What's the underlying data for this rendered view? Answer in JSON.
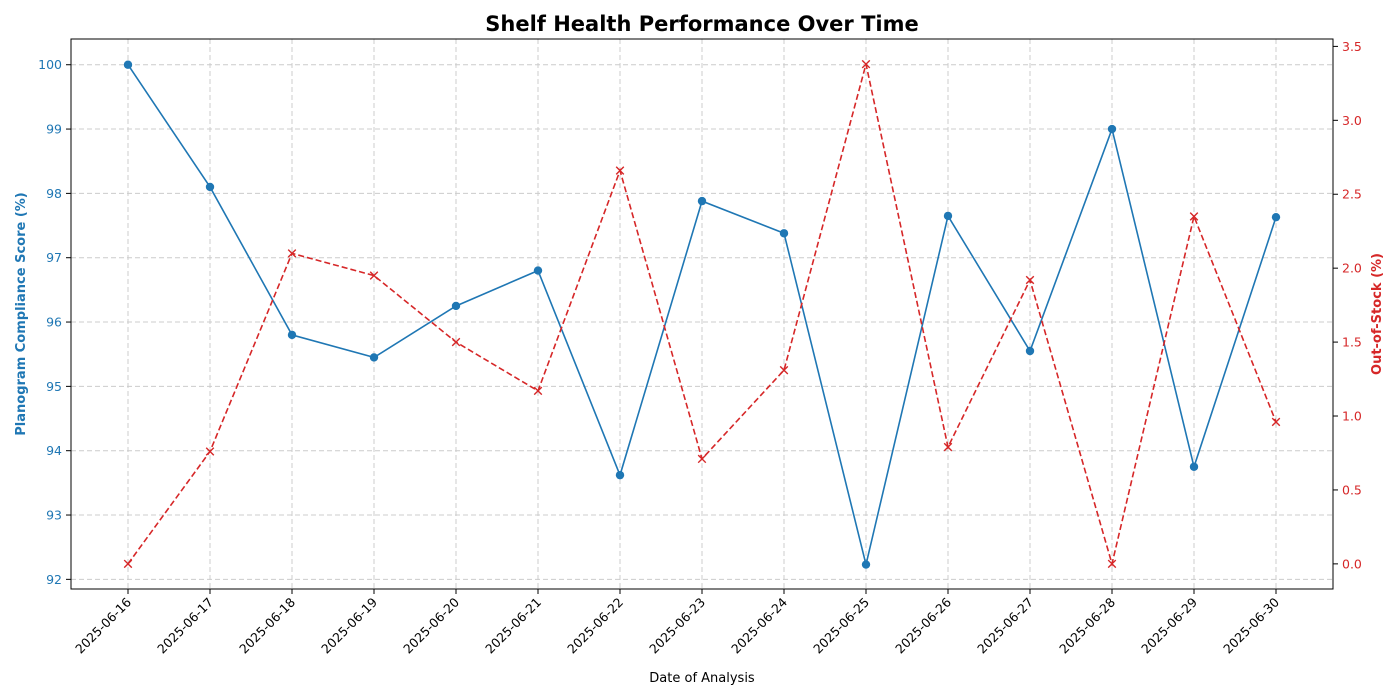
{
  "chart_data": {
    "type": "line",
    "title": "Shelf Health Performance Over Time",
    "xlabel": "Date of Analysis",
    "categories": [
      "2025-06-16",
      "2025-06-17",
      "2025-06-18",
      "2025-06-19",
      "2025-06-20",
      "2025-06-21",
      "2025-06-22",
      "2025-06-23",
      "2025-06-24",
      "2025-06-25",
      "2025-06-26",
      "2025-06-27",
      "2025-06-28",
      "2025-06-29",
      "2025-06-30"
    ],
    "grid": true,
    "left_axis": {
      "label": "Planogram Compliance Score (%)",
      "color": "#1f77b4",
      "ylim": [
        91.85,
        100.4
      ],
      "ticks": [
        "92",
        "93",
        "94",
        "95",
        "96",
        "97",
        "98",
        "99",
        "100"
      ]
    },
    "right_axis": {
      "label": "Out-of-Stock (%)",
      "color": "#d62728",
      "ylim": [
        -0.17,
        3.55
      ],
      "ticks": [
        "0.0",
        "0.5",
        "1.0",
        "1.5",
        "2.0",
        "2.5",
        "3.0",
        "3.5"
      ]
    },
    "series": [
      {
        "axis": "left",
        "color": "#1f77b4",
        "line_style": "solid",
        "marker": "circle",
        "values": [
          100.0,
          98.1,
          95.8,
          95.45,
          96.25,
          96.8,
          93.62,
          97.88,
          97.38,
          92.23,
          97.65,
          95.55,
          99.0,
          93.75,
          97.63
        ]
      },
      {
        "axis": "right",
        "color": "#d62728",
        "line_style": "dashed",
        "marker": "x",
        "values": [
          0.0,
          0.76,
          2.1,
          1.95,
          1.5,
          1.17,
          2.66,
          0.71,
          1.31,
          3.38,
          0.79,
          1.92,
          0.0,
          2.35,
          0.96
        ]
      }
    ]
  }
}
